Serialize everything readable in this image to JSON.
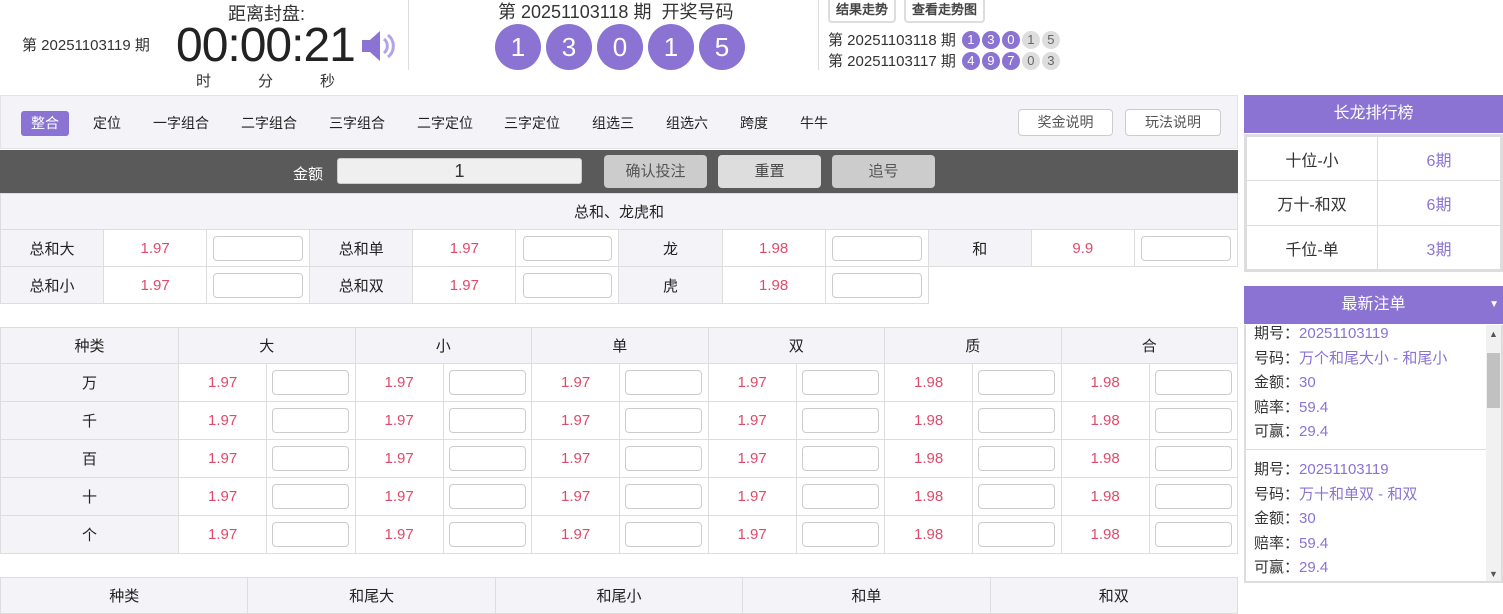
{
  "header": {
    "current_issue": "第 20251103119 期",
    "countdown_label": "距离封盘:",
    "countdown": "00:00:21",
    "hour": "时",
    "minute": "分",
    "second": "秒",
    "draw_title": "第 20251103118 期  开奖号码",
    "draw_numbers": [
      "1",
      "3",
      "0",
      "1",
      "5"
    ],
    "trend_button": "结果走势",
    "chart_button": "查看走势图",
    "history": [
      {
        "issue": "第 20251103118 期",
        "numbers": [
          "1",
          "3",
          "0",
          "1",
          "5"
        ]
      },
      {
        "issue": "第 20251103117 期",
        "numbers": [
          "4",
          "9",
          "7",
          "0",
          "3"
        ]
      }
    ]
  },
  "tabs": [
    "整合",
    "定位",
    "一字组合",
    "二字组合",
    "三字组合",
    "二字定位",
    "三字定位",
    "组选三",
    "组选六",
    "跨度",
    "牛牛"
  ],
  "active_tab": "整合",
  "prize_button": "奖金说明",
  "rules_button": "玩法说明",
  "bet": {
    "amount_label": "金额",
    "amount": "1",
    "confirm": "确认投注",
    "reset": "重置",
    "chase": "追号"
  },
  "sum_section": {
    "title": "总和、龙虎和",
    "rows": [
      [
        [
          "总和大",
          "1.97"
        ],
        [
          "总和单",
          "1.97"
        ],
        [
          "龙",
          "1.98"
        ],
        [
          "和",
          "9.9"
        ]
      ],
      [
        [
          "总和小",
          "1.97"
        ],
        [
          "总和双",
          "1.97"
        ],
        [
          "虎",
          "1.98"
        ]
      ]
    ]
  },
  "pos_table": {
    "headers": [
      "种类",
      "大",
      "小",
      "单",
      "双",
      "质",
      "合"
    ],
    "rows": [
      {
        "label": "万",
        "odds": [
          "1.97",
          "1.97",
          "1.97",
          "1.97",
          "1.98",
          "1.98"
        ]
      },
      {
        "label": "千",
        "odds": [
          "1.97",
          "1.97",
          "1.97",
          "1.97",
          "1.98",
          "1.98"
        ]
      },
      {
        "label": "百",
        "odds": [
          "1.97",
          "1.97",
          "1.97",
          "1.97",
          "1.98",
          "1.98"
        ]
      },
      {
        "label": "十",
        "odds": [
          "1.97",
          "1.97",
          "1.97",
          "1.97",
          "1.98",
          "1.98"
        ]
      },
      {
        "label": "个",
        "odds": [
          "1.97",
          "1.97",
          "1.97",
          "1.97",
          "1.98",
          "1.98"
        ]
      }
    ]
  },
  "tail_table": {
    "headers": [
      "种类",
      "和尾大",
      "和尾小",
      "和单",
      "和双"
    ]
  },
  "ranking": {
    "title": "长龙排行榜",
    "rows": [
      [
        "十位-小",
        "6期"
      ],
      [
        "万十-和双",
        "6期"
      ],
      [
        "千位-单",
        "3期"
      ]
    ]
  },
  "orders": {
    "title": "最新注单",
    "labels": [
      "期号：",
      "号码：",
      "金额：",
      "赔率：",
      "可赢："
    ],
    "items": [
      [
        "20251103119",
        "万个和尾大小 - 和尾小",
        "30",
        "59.4",
        "29.4"
      ],
      [
        "20251103119",
        "万十和单双 - 和双",
        "30",
        "59.4",
        "29.4"
      ]
    ]
  },
  "colors": {
    "accent": "#8a73d2",
    "odds": "#e04a6a"
  }
}
